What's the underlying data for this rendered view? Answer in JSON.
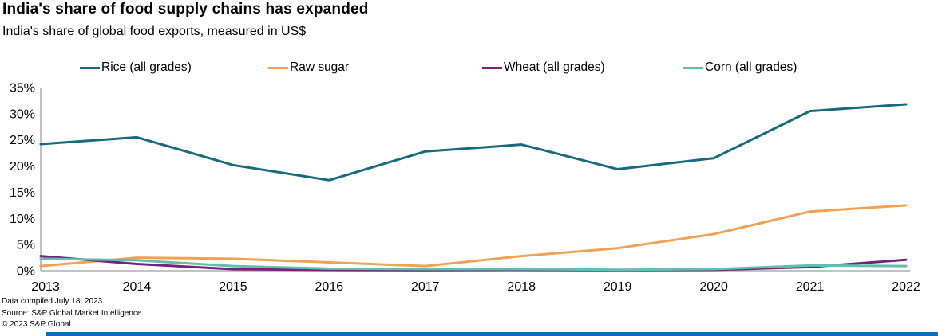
{
  "header": {
    "title": "India's share of food supply chains has expanded",
    "subtitle": "India's share of global food exports, measured in US$"
  },
  "chart_data": {
    "type": "line",
    "x": [
      2013,
      2014,
      2015,
      2016,
      2017,
      2018,
      2019,
      2020,
      2021,
      2022
    ],
    "series": [
      {
        "name": "Rice (all grades)",
        "color": "#17697D",
        "values": [
          24.2,
          25.5,
          20.2,
          17.3,
          22.8,
          24.1,
          19.4,
          21.5,
          30.5,
          31.8
        ]
      },
      {
        "name": "Raw sugar",
        "color": "#F0A152",
        "values": [
          0.9,
          2.5,
          2.3,
          1.6,
          0.9,
          2.8,
          4.3,
          7.0,
          11.3,
          12.5
        ]
      },
      {
        "name": "Wheat (all grades)",
        "color": "#76217E",
        "values": [
          2.8,
          1.3,
          0.3,
          0.15,
          0.1,
          0.15,
          0.1,
          0.15,
          0.7,
          2.1
        ]
      },
      {
        "name": "Corn (all grades)",
        "color": "#5FC0AD",
        "values": [
          2.3,
          2.0,
          0.9,
          0.4,
          0.3,
          0.3,
          0.2,
          0.3,
          1.0,
          0.9
        ]
      }
    ],
    "title": "India's share of food supply chains has expanded",
    "xlabel": "",
    "ylabel": "",
    "ylim": [
      0,
      35
    ],
    "yticks": [
      "0%",
      "5%",
      "10%",
      "15%",
      "20%",
      "25%",
      "30%",
      "35%"
    ],
    "grid": false,
    "legend_position": "top",
    "axis_color": "#ADADAD",
    "tick_font_size": 16
  },
  "footer": {
    "lines": [
      "Data compiled July 18, 2023.",
      "Source: S&P Global Market Intelligence.",
      "© 2023 S&P Global."
    ]
  },
  "accent_bar_color": "#0072BC"
}
